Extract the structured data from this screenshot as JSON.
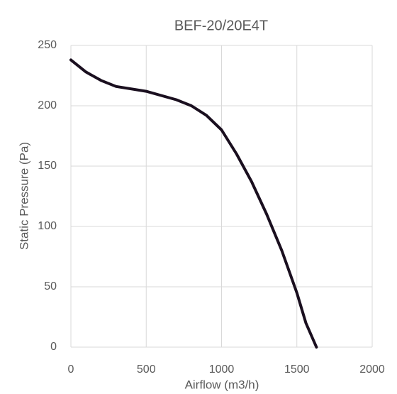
{
  "chart_data": {
    "type": "line",
    "title": "BEF-20/20E4T",
    "x_label": "Airflow (m3/h)",
    "y_label": "Static Pressure (Pa)",
    "x": [
      0,
      100,
      200,
      300,
      500,
      700,
      800,
      900,
      1000,
      1100,
      1200,
      1300,
      1400,
      1500,
      1560,
      1630
    ],
    "series": [
      {
        "name": "BEF-20/20E4T",
        "color": "#1a0f1f",
        "values": [
          238,
          228,
          221,
          216,
          212,
          205,
          200,
          192,
          180,
          160,
          137,
          110,
          80,
          45,
          20,
          0
        ]
      }
    ],
    "xlim": [
      0,
      2000
    ],
    "xticks": [
      0,
      500,
      1000,
      1500,
      2000
    ],
    "ylim": [
      0,
      250
    ],
    "yticks": [
      0,
      50,
      100,
      150,
      200,
      250
    ],
    "grid": true
  }
}
